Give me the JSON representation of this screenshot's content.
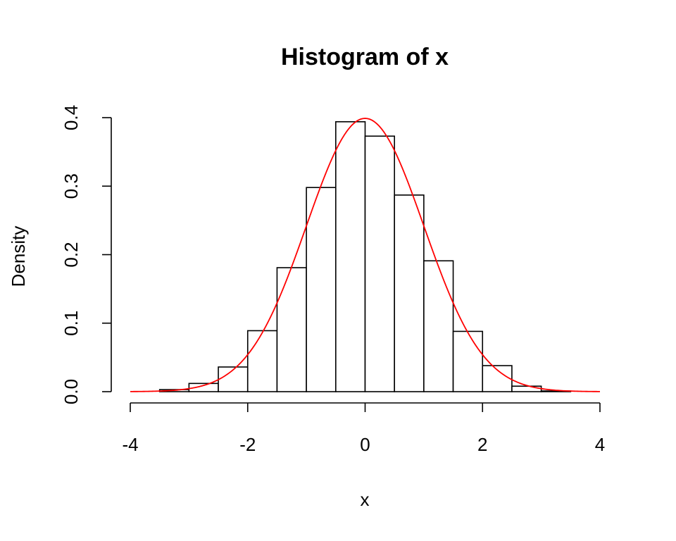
{
  "chart_data": {
    "type": "bar",
    "title": "Histogram of x",
    "xlabel": "x",
    "ylabel": "Density",
    "xlim": [
      -4,
      4
    ],
    "ylim": [
      0,
      0.4
    ],
    "x_ticks": [
      -4,
      -2,
      0,
      2,
      4
    ],
    "y_ticks": [
      0.0,
      0.1,
      0.2,
      0.3,
      0.4
    ],
    "x_tick_labels": [
      "-4",
      "-2",
      "0",
      "2",
      "4"
    ],
    "y_tick_labels": [
      "0.0",
      "0.1",
      "0.2",
      "0.3",
      "0.4"
    ],
    "bins": [
      {
        "x0": -4.0,
        "x1": -3.5,
        "density": 0.0
      },
      {
        "x0": -3.5,
        "x1": -3.0,
        "density": 0.003
      },
      {
        "x0": -3.0,
        "x1": -2.5,
        "density": 0.012
      },
      {
        "x0": -2.5,
        "x1": -2.0,
        "density": 0.036
      },
      {
        "x0": -2.0,
        "x1": -1.5,
        "density": 0.089
      },
      {
        "x0": -1.5,
        "x1": -1.0,
        "density": 0.181
      },
      {
        "x0": -1.0,
        "x1": -0.5,
        "density": 0.298
      },
      {
        "x0": -0.5,
        "x1": 0.0,
        "density": 0.394
      },
      {
        "x0": 0.0,
        "x1": 0.5,
        "density": 0.373
      },
      {
        "x0": 0.5,
        "x1": 1.0,
        "density": 0.287
      },
      {
        "x0": 1.0,
        "x1": 1.5,
        "density": 0.191
      },
      {
        "x0": 1.5,
        "x1": 2.0,
        "density": 0.088
      },
      {
        "x0": 2.0,
        "x1": 2.5,
        "density": 0.038
      },
      {
        "x0": 2.5,
        "x1": 3.0,
        "density": 0.008
      },
      {
        "x0": 3.0,
        "x1": 3.5,
        "density": 0.001
      },
      {
        "x0": 3.5,
        "x1": 4.0,
        "density": 0.0
      }
    ],
    "overlay": {
      "type": "line",
      "function": "normal density",
      "mean": 0,
      "sd": 1,
      "color": "#ff0000"
    },
    "grid": false,
    "legend": "none"
  }
}
